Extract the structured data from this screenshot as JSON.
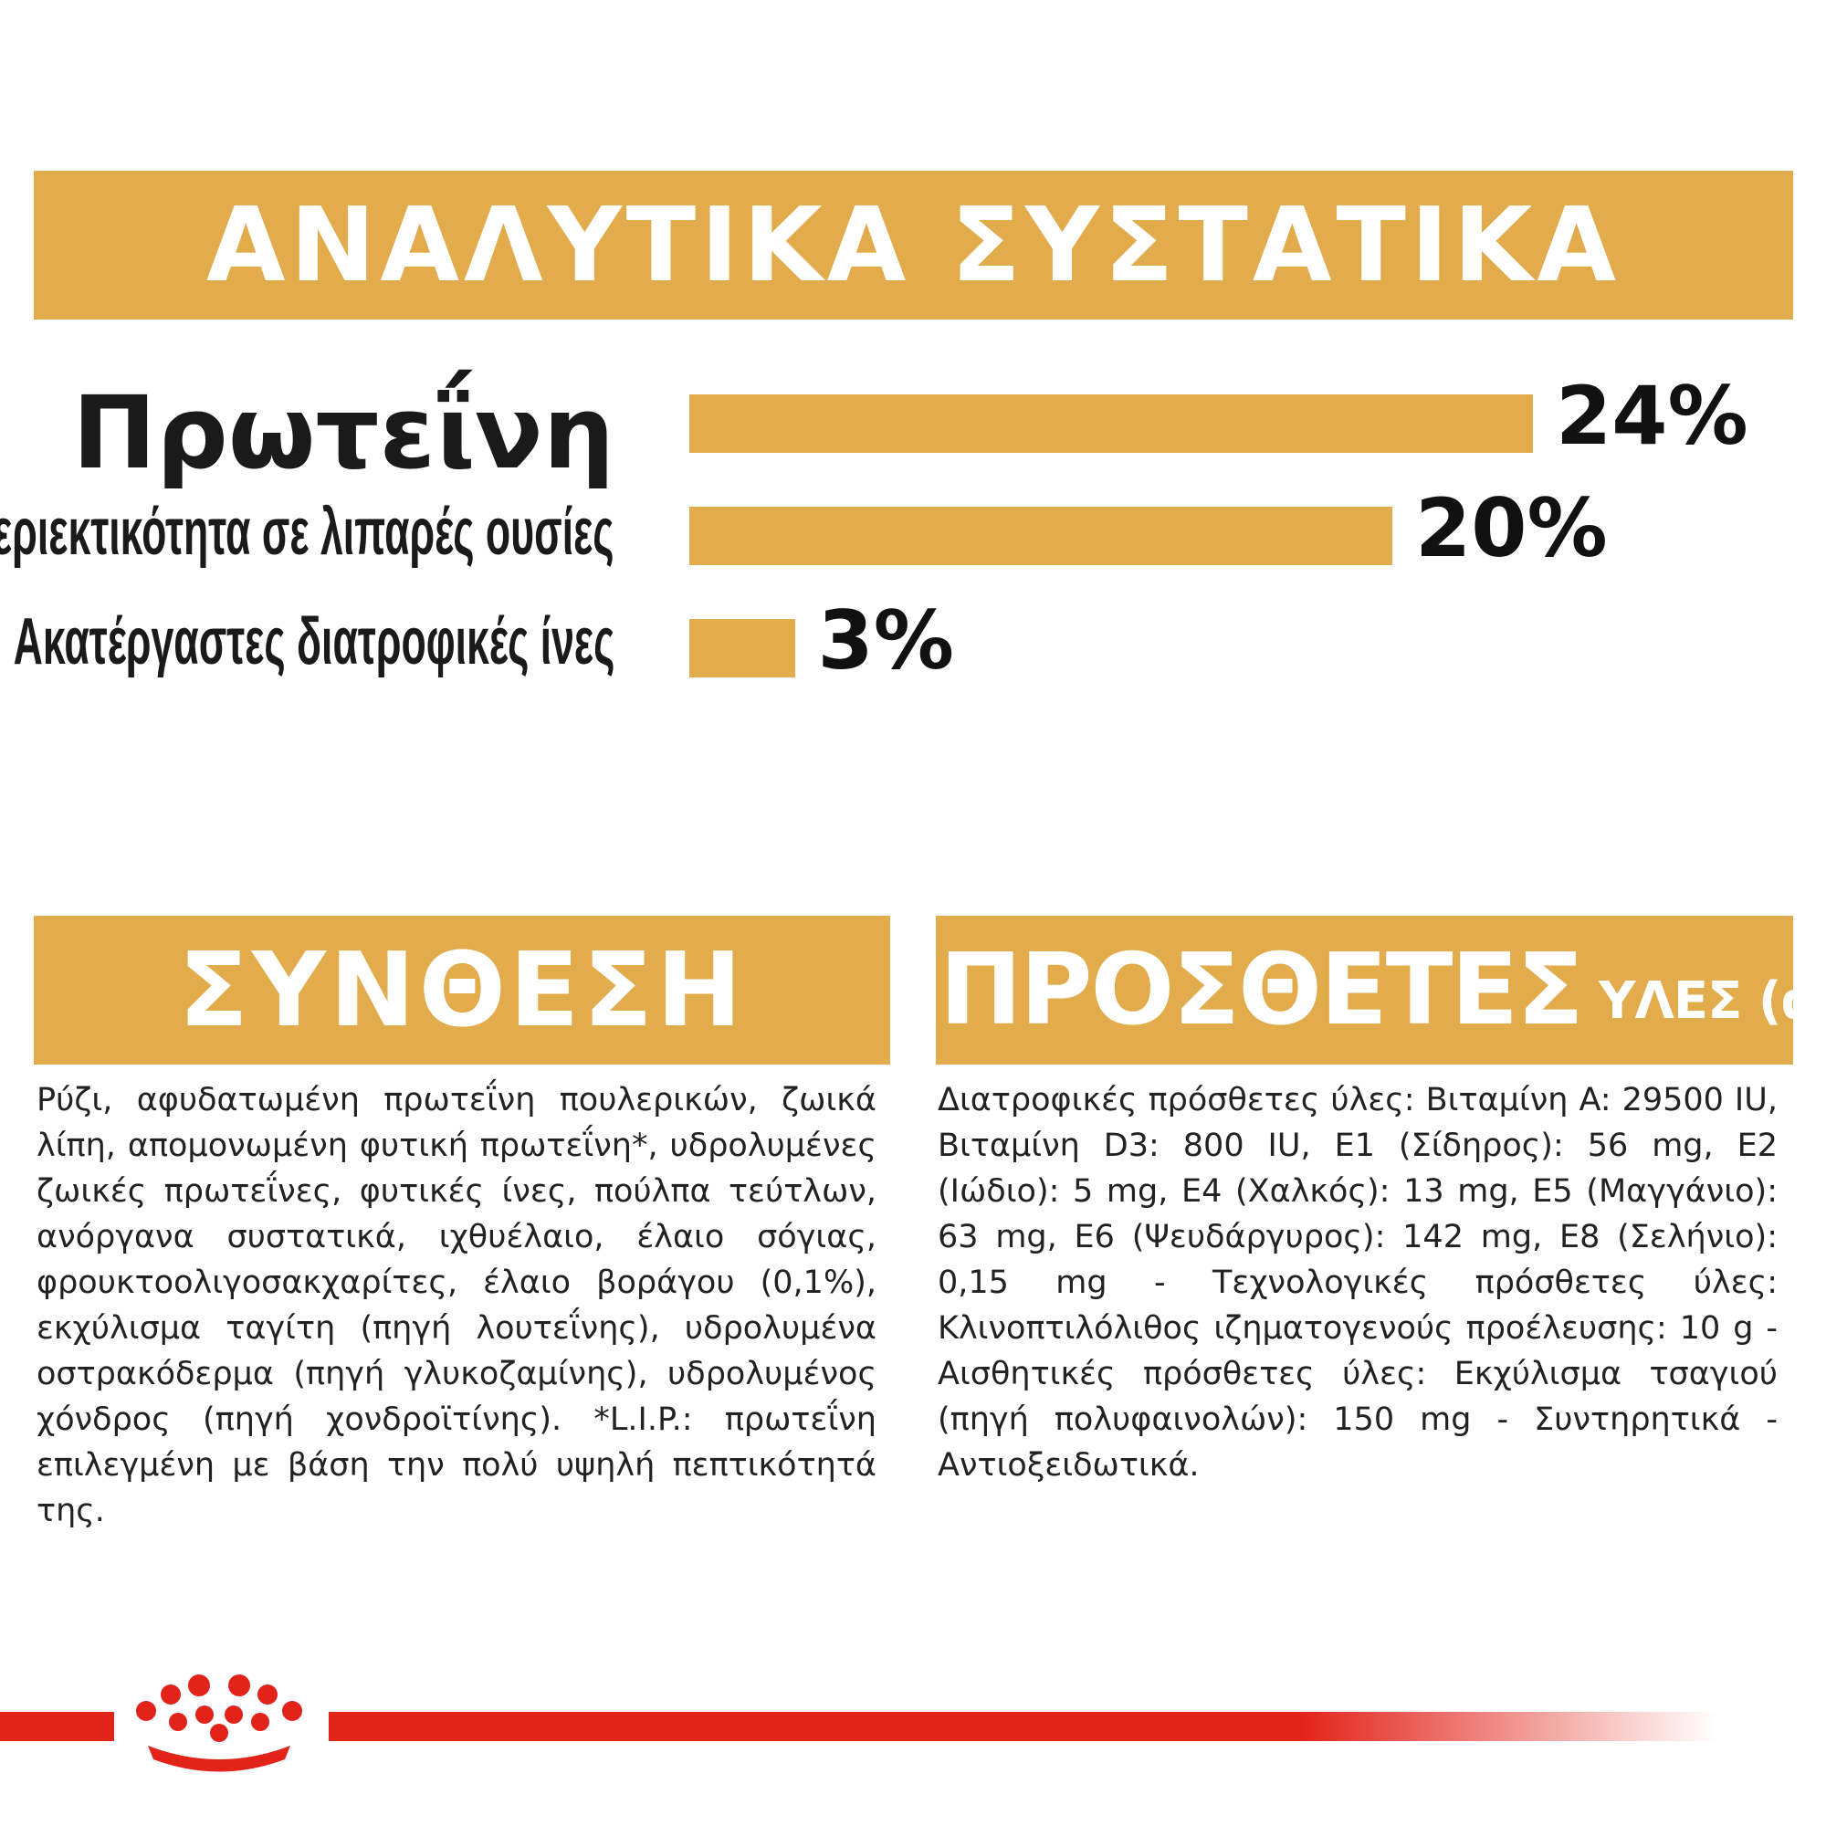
{
  "headers": {
    "analytical": "ΑΝΑΛΥΤΙΚΑ ΣΥΣΤΑΤΙΚΑ",
    "composition": "ΣΥΝΘΕΣΗ",
    "additives_big": "ΠΡΟΣΘΕΤΕΣ",
    "additives_small": "ΥΛΕΣ (ανά kg)"
  },
  "chart_data": {
    "type": "bar",
    "orientation": "horizontal",
    "title": "ΑΝΑΛΥΤΙΚΑ ΣΥΣΤΑΤΙΚΑ",
    "categories": [
      "Πρωτεΐνη",
      "Περιεκτικότητα σε λιπαρές ουσίες",
      "Ακατέργαστες διατροφικές ίνες"
    ],
    "values": [
      24,
      20,
      3
    ],
    "value_labels": [
      "24%",
      "20%",
      "3%"
    ],
    "unit": "%",
    "bar_color": "#e2ab4b",
    "grid": false,
    "legend": "none"
  },
  "composition_text": "Ρύζι, αφυδατωμένη πρωτεΐνη πουλερικών, ζωικά λίπη, απομονωμένη φυτική πρωτεΐνη*, υδρολυμένες ζωικές πρωτεΐνες, φυτικές ίνες, πούλπα τεύτλων, ανόργανα συστατικά, ιχθυέλαιο, έλαιο σόγιας, φρουκτοολιγοσακχαρίτες, έλαιο βοράγου (0,1%), εκχύλισμα ταγίτη (πηγή λουτεΐνης), υδρολυμένα οστρακόδερμα (πηγή γλυκοζαμίνης), υδρολυμένος χόνδρος (πηγή χονδροϊτίνης). *L.I.P.: πρωτεΐνη επιλεγμένη με βάση την πολύ υψηλή πεπτικότητά της.",
  "additives_text": "Διατροφικές πρόσθετες ύλες: Βιταμίνη A: 29500 IU, Βιταμίνη D3: 800 IU, E1 (Σίδηρος): 56 mg, E2 (Ιώδιο): 5 mg, E4 (Χαλκός): 13 mg, E5 (Μαγγάνιο): 63 mg, E6 (Ψευδάργυρος): 142 mg, E8 (Σελήνιο): 0,15 mg - Τεχνολογικές πρόσθετες ύλες: Κλινοπτιλόλιθος ιζηματογενούς προέλευσης: 10 g - Αισθητικές πρόσθετες ύλες: Εκχύλισμα τσαγιού (πηγή πολυφαινολών): 150 mg - Συντηρητικά - Αντιοξειδωτικά.",
  "colors": {
    "accent": "#e2ab4b",
    "brand_red": "#e2231a"
  },
  "icons": {
    "logo": "royal-canin-crown-icon"
  }
}
